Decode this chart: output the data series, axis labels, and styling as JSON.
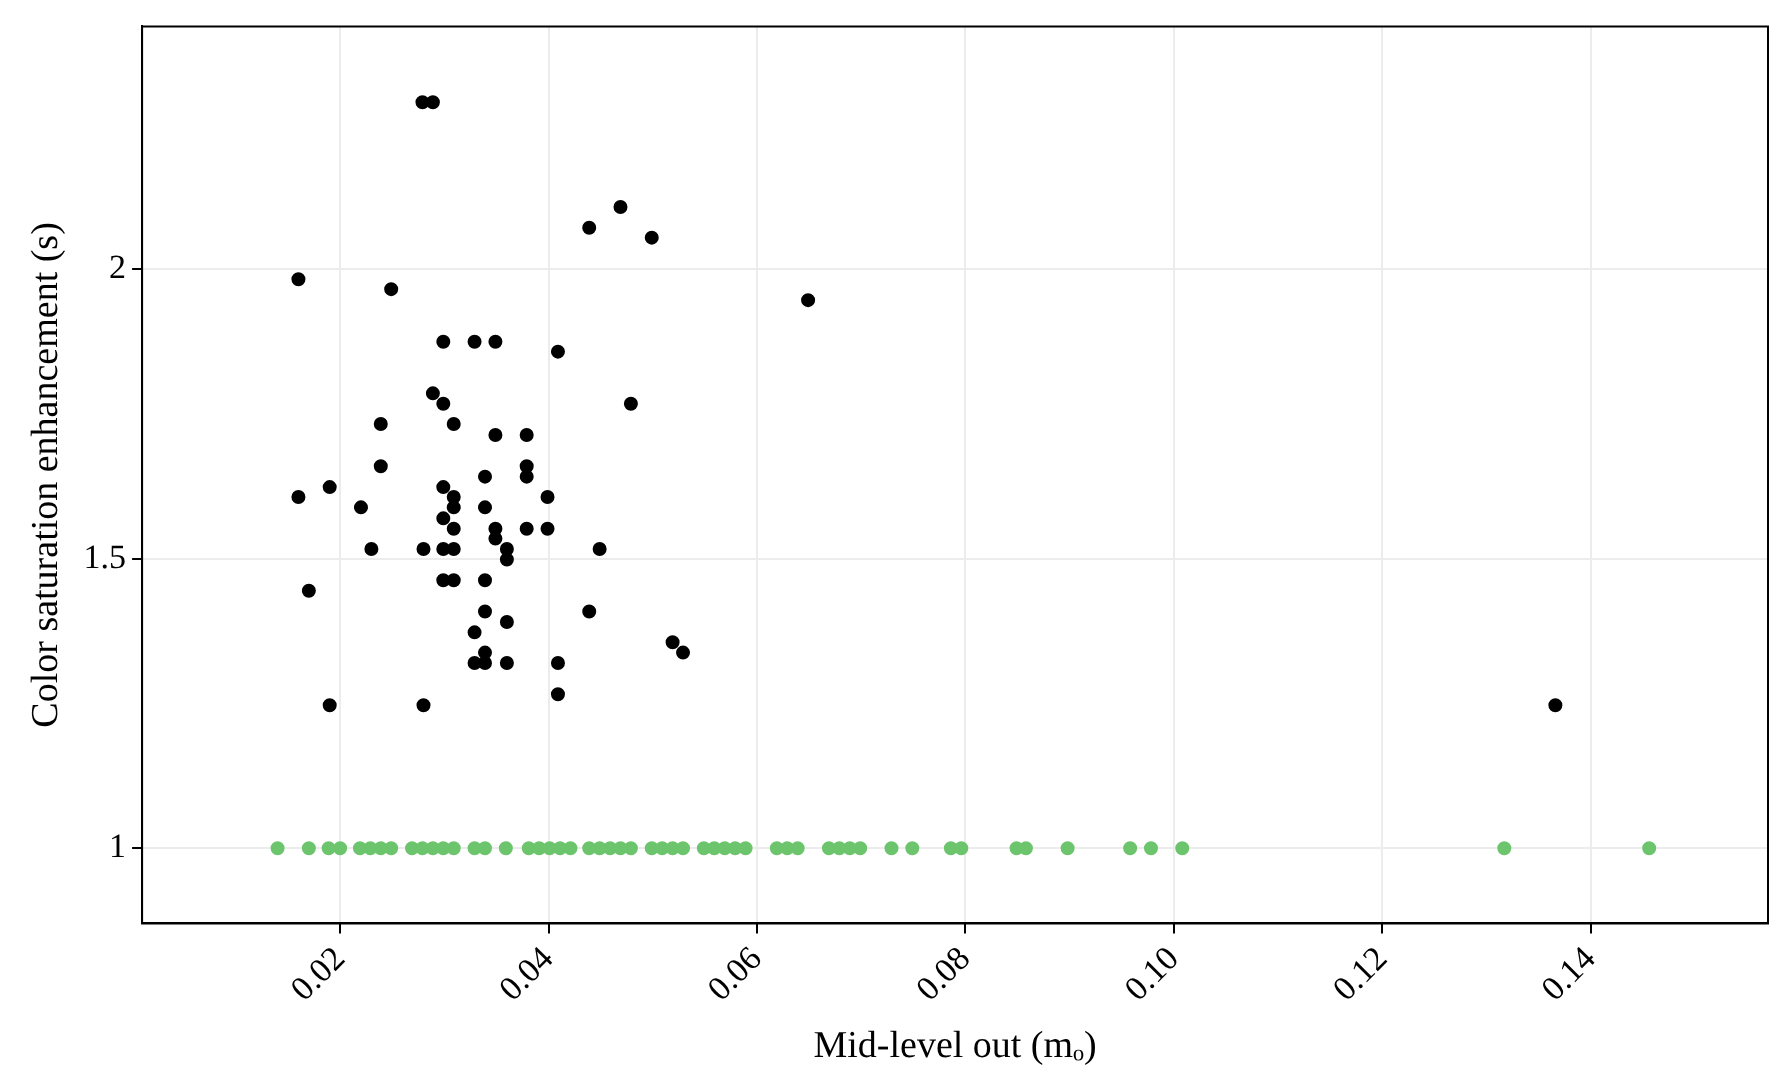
{
  "chart_data": {
    "type": "scatter",
    "xlabel": "Mid-level out (mₒ)",
    "ylabel": "Color saturation enhancement (s)",
    "xlim": [
      0.001,
      0.157
    ],
    "ylim": [
      0.87,
      2.42
    ],
    "xticks": [
      0.02,
      0.04,
      0.06,
      0.08,
      {
        "value": 0.1,
        "label": "0.10"
      },
      0.12,
      0.14
    ],
    "yticks": [
      1,
      1.5,
      2
    ],
    "grid": true,
    "legend": false,
    "marker": "circle",
    "series": [
      {
        "color": "#000000",
        "x": [
          0.0279,
          0.0289,
          0.0469,
          0.0439,
          0.0499,
          0.016,
          0.0249,
          0.0299,
          0.0329,
          0.0349,
          0.0409,
          0.0289,
          0.0299,
          0.0479,
          0.0239,
          0.0309,
          0.0349,
          0.0379,
          0.0239,
          0.0379,
          0.0379,
          0.0339,
          0.019,
          0.0299,
          0.016,
          0.0309,
          0.022,
          0.0309,
          0.0339,
          0.0399,
          0.0299,
          0.0309,
          0.0349,
          0.0379,
          0.0399,
          0.0349,
          0.036,
          0.036,
          0.023,
          0.028,
          0.0299,
          0.0309,
          0.0449,
          0.017,
          0.0299,
          0.0309,
          0.0339,
          0.0339,
          0.036,
          0.0439,
          0.0329,
          0.0519,
          0.0529,
          0.0339,
          0.0329,
          0.0339,
          0.036,
          0.0409,
          0.0409,
          0.019,
          0.028,
          0.0649,
          0.1366
        ],
        "values": [
          2.289,
          2.289,
          2.108,
          2.072,
          2.055,
          1.983,
          1.966,
          1.875,
          1.875,
          1.875,
          1.858,
          1.786,
          1.768,
          1.768,
          1.733,
          1.733,
          1.714,
          1.714,
          1.66,
          1.66,
          1.642,
          1.642,
          1.624,
          1.624,
          1.607,
          1.607,
          1.589,
          1.589,
          1.589,
          1.607,
          1.57,
          1.552,
          1.552,
          1.552,
          1.552,
          1.535,
          1.517,
          1.499,
          1.517,
          1.517,
          1.517,
          1.517,
          1.517,
          1.445,
          1.463,
          1.463,
          1.463,
          1.409,
          1.391,
          1.409,
          1.373,
          1.356,
          1.338,
          1.338,
          1.32,
          1.32,
          1.32,
          1.32,
          1.266,
          1.247,
          1.247,
          1.947,
          1.247
        ]
      },
      {
        "color": "#6cc56c",
        "x": [
          0.014,
          0.017,
          0.0189,
          0.02,
          0.0219,
          0.0229,
          0.0239,
          0.0249,
          0.0269,
          0.0279,
          0.0289,
          0.0299,
          0.0309,
          0.0329,
          0.0339,
          0.0359,
          0.0381,
          0.0391,
          0.0401,
          0.0411,
          0.0421,
          0.0439,
          0.0449,
          0.0459,
          0.0469,
          0.0479,
          0.0499,
          0.0509,
          0.0519,
          0.0529,
          0.0549,
          0.0559,
          0.0569,
          0.0579,
          0.0589,
          0.0619,
          0.0629,
          0.0639,
          0.0669,
          0.0679,
          0.0689,
          0.0699,
          0.0729,
          0.0749,
          0.0786,
          0.0796,
          0.0849,
          0.0858,
          0.0898,
          0.0958,
          0.0978,
          0.1008,
          0.1317,
          0.1456
        ],
        "values": [
          1,
          1,
          1,
          1,
          1,
          1,
          1,
          1,
          1,
          1,
          1,
          1,
          1,
          1,
          1,
          1,
          1,
          1,
          1,
          1,
          1,
          1,
          1,
          1,
          1,
          1,
          1,
          1,
          1,
          1,
          1,
          1,
          1,
          1,
          1,
          1,
          1,
          1,
          1,
          1,
          1,
          1,
          1,
          1,
          1,
          1,
          1,
          1,
          1,
          1,
          1,
          1,
          1,
          1
        ]
      }
    ]
  }
}
